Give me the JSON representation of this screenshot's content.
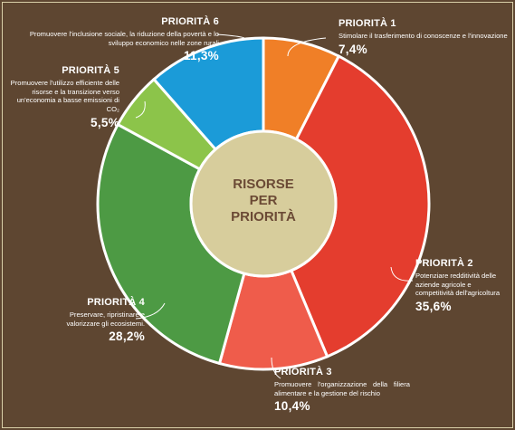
{
  "chart_data": {
    "type": "donut",
    "center_label": [
      "RISORSE",
      "PER",
      "PRIORITÀ"
    ],
    "unit": "%",
    "slices": [
      {
        "id": "p1",
        "title": "PRIORITÀ 1",
        "description": "Stimolare il trasferimento di conoscenze e l'innovazione",
        "value": 7.4,
        "value_label": "7,4%",
        "color": "#f07f27"
      },
      {
        "id": "p2",
        "title": "PRIORITÀ 2",
        "description": "Potenziare redditività delle aziende agricole e competitività dell'agricoltura",
        "value": 35.6,
        "value_label": "35,6%",
        "color": "#e43d2e"
      },
      {
        "id": "p3",
        "title": "PRIORITÀ 3",
        "description": "Promuovere l'organizzazione della filiera alimentare e la gestione del rischio",
        "value": 10.4,
        "value_label": "10,4%",
        "color": "#ef5c4b"
      },
      {
        "id": "p4",
        "title": "PRIORITÀ 4",
        "description": "Preservare, ripristinare e valorizzare gli ecosistemi.",
        "value": 28.2,
        "value_label": "28,2%",
        "color": "#4d9a44"
      },
      {
        "id": "p5",
        "title": "PRIORITÀ 5",
        "description": "Promuovere l'utilizzo efficiente delle risorse e la transizione verso un'economia a basse emissioni di CO₂",
        "value": 5.5,
        "value_label": "5,5%",
        "color": "#8cc44a"
      },
      {
        "id": "p6",
        "title": "PRIORITÀ 6",
        "description": "Promuovere l'inclusione sociale, la riduzione della povertà e lo sviluppo economico nelle zone rurali",
        "value": 11.3,
        "value_label": "11,3%",
        "color": "#1b9bd8"
      }
    ]
  }
}
